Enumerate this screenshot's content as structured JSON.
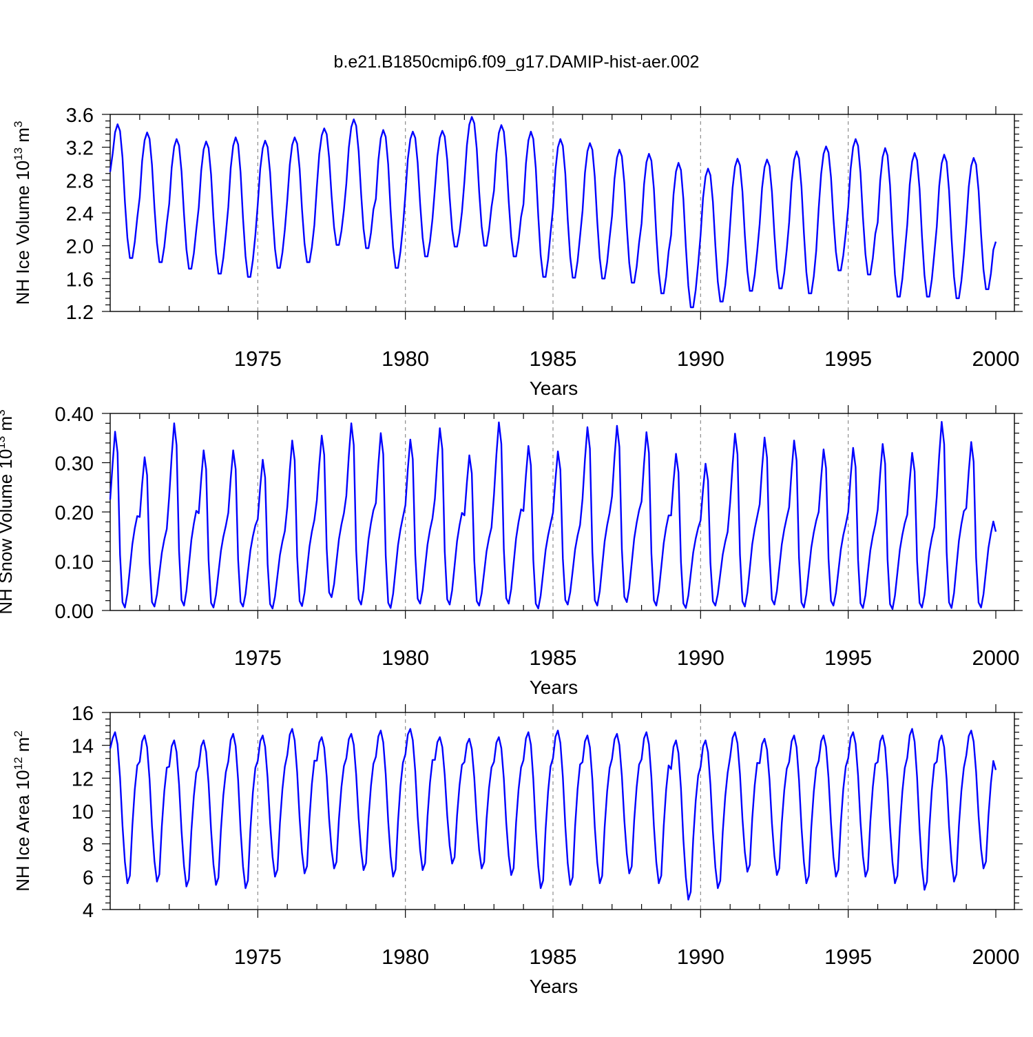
{
  "title": "b.e21.B1850cmip6.f09_g17.DAMIP-hist-aer.002",
  "colors": {
    "series": "#0000ff",
    "grid": "#8c8c8c",
    "axis": "#000000",
    "background": "#ffffff"
  },
  "chart_data": [
    {
      "type": "line",
      "name": "ice-volume",
      "ylabel_main": "NH Ice Volume 10",
      "ylabel_exp": "13",
      "ylabel_unit": " m",
      "ylabel_unit_exp": "3",
      "xlabel": "Years",
      "xlim": [
        1970,
        2000
      ],
      "ylim": [
        1.2,
        3.6
      ],
      "yticks": [
        "1.2",
        "1.6",
        "2.0",
        "2.4",
        "2.8",
        "3.2",
        "3.6"
      ],
      "xticks": [
        "1975",
        "1980",
        "1985",
        "1990",
        "1995",
        "2000"
      ],
      "grid_x": [
        1975,
        1980,
        1985,
        1990,
        1995
      ],
      "seasonal_shape": [
        0.5,
        0.78,
        0.94,
        1.0,
        0.95,
        0.75,
        0.42,
        0.15,
        0.0,
        0.0,
        0.12,
        0.3
      ],
      "annual_max": [
        3.48,
        3.38,
        3.3,
        3.27,
        3.32,
        3.28,
        3.32,
        3.43,
        3.54,
        3.41,
        3.39,
        3.4,
        3.57,
        3.47,
        3.39,
        3.3,
        3.25,
        3.17,
        3.12,
        3.01,
        2.94,
        3.06,
        3.05,
        3.15,
        3.21,
        3.3,
        3.19,
        3.13,
        3.11,
        3.07
      ],
      "annual_min": [
        1.85,
        1.8,
        1.72,
        1.66,
        1.62,
        1.73,
        1.8,
        2.01,
        1.97,
        1.73,
        1.87,
        1.99,
        2.0,
        1.87,
        1.62,
        1.61,
        1.6,
        1.55,
        1.42,
        1.25,
        1.32,
        1.45,
        1.48,
        1.42,
        1.7,
        1.65,
        1.38,
        1.38,
        1.36,
        1.47
      ],
      "start_value": 2.9,
      "end_value": 2.05
    },
    {
      "type": "line",
      "name": "snow-volume",
      "ylabel_main": "NH Snow Volume 10",
      "ylabel_exp": "13",
      "ylabel_unit": " m",
      "ylabel_unit_exp": "3",
      "xlabel": "Years",
      "xlim": [
        1970,
        2000
      ],
      "ylim": [
        0.0,
        0.4
      ],
      "yticks": [
        "0.00",
        "0.10",
        "0.20",
        "0.30",
        "0.40"
      ],
      "xticks": [
        "1975",
        "1980",
        "1985",
        "1990",
        "1995",
        "2000"
      ],
      "grid_x": [
        1975,
        1980,
        1985,
        1990,
        1995
      ],
      "seasonal_shape": [
        0.6,
        0.82,
        1.0,
        0.88,
        0.3,
        0.03,
        0.0,
        0.08,
        0.22,
        0.36,
        0.45,
        0.52
      ],
      "annual_max": [
        0.363,
        0.311,
        0.38,
        0.325,
        0.325,
        0.306,
        0.345,
        0.355,
        0.38,
        0.36,
        0.347,
        0.37,
        0.315,
        0.382,
        0.334,
        0.323,
        0.372,
        0.375,
        0.362,
        0.318,
        0.298,
        0.359,
        0.351,
        0.345,
        0.327,
        0.33,
        0.338,
        0.32,
        0.383,
        0.342
      ],
      "annual_min": [
        0.006,
        0.008,
        0.01,
        0.006,
        0.008,
        0.004,
        0.009,
        0.027,
        0.012,
        0.005,
        0.014,
        0.012,
        0.01,
        0.014,
        0.004,
        0.012,
        0.01,
        0.017,
        0.01,
        0.005,
        0.01,
        0.008,
        0.012,
        0.006,
        0.01,
        0.005,
        0.003,
        0.006,
        0.005,
        0.006
      ],
      "start_value": 0.225,
      "end_value": 0.16
    },
    {
      "type": "line",
      "name": "ice-area",
      "ylabel_main": "NH Ice Area 10",
      "ylabel_exp": "12",
      "ylabel_unit": " m",
      "ylabel_unit_exp": "2",
      "xlabel": "Years",
      "xlim": [
        1970,
        2000
      ],
      "ylim": [
        4,
        16
      ],
      "yticks": [
        "4",
        "6",
        "8",
        "10",
        "12",
        "14",
        "16"
      ],
      "xticks": [
        "1975",
        "1980",
        "1985",
        "1990",
        "1995",
        "2000"
      ],
      "grid_x": [
        1975,
        1980,
        1985,
        1990,
        1995
      ],
      "seasonal_shape": [
        0.82,
        0.96,
        1.0,
        0.92,
        0.7,
        0.38,
        0.14,
        0.0,
        0.05,
        0.38,
        0.62,
        0.78
      ],
      "annual_max": [
        14.8,
        14.6,
        14.3,
        14.3,
        14.7,
        14.6,
        15.0,
        14.5,
        14.7,
        14.9,
        15.0,
        14.5,
        14.4,
        14.5,
        14.8,
        14.9,
        14.6,
        14.7,
        14.8,
        14.3,
        14.3,
        14.8,
        14.4,
        14.6,
        14.6,
        14.8,
        14.6,
        15.0,
        14.6,
        14.9
      ],
      "annual_min": [
        5.6,
        5.7,
        5.4,
        5.5,
        5.3,
        6.0,
        6.2,
        6.5,
        6.4,
        6.0,
        6.4,
        6.8,
        6.5,
        6.1,
        5.3,
        5.5,
        5.6,
        6.2,
        5.6,
        4.6,
        5.3,
        6.3,
        6.1,
        5.6,
        6.0,
        6.0,
        5.6,
        5.2,
        5.7,
        6.5
      ],
      "start_value": 13.8,
      "end_value": 12.5
    }
  ]
}
